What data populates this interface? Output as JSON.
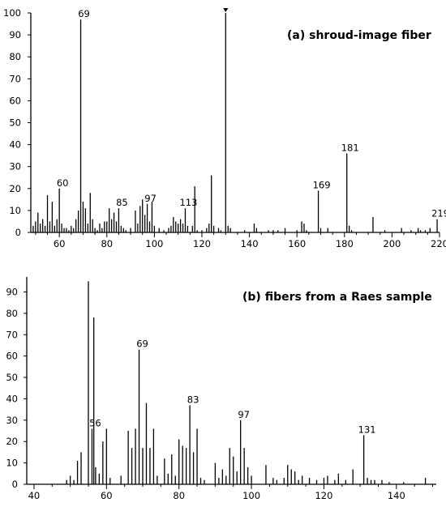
{
  "chart_data": [
    {
      "type": "bar",
      "title": "(a) shroud-image fiber",
      "xlabel": "",
      "ylabel": "",
      "xlim": [
        48,
        220
      ],
      "ylim": [
        0,
        100
      ],
      "xticks": [
        60,
        80,
        100,
        120,
        140,
        160,
        180,
        200,
        220
      ],
      "yticks": [
        0,
        10,
        20,
        30,
        40,
        50,
        60,
        70,
        80,
        90,
        100
      ],
      "peak_labels": [
        {
          "x": 69,
          "text": "69"
        },
        {
          "x": 60,
          "text": "60"
        },
        {
          "x": 85,
          "text": "85"
        },
        {
          "x": 97,
          "text": "97"
        },
        {
          "x": 113,
          "text": "113"
        },
        {
          "x": 169,
          "text": "169"
        },
        {
          "x": 181,
          "text": "181"
        },
        {
          "x": 219,
          "text": "219"
        }
      ],
      "peaks": [
        {
          "x": 49,
          "y": 3
        },
        {
          "x": 50,
          "y": 5
        },
        {
          "x": 51,
          "y": 9
        },
        {
          "x": 52,
          "y": 4
        },
        {
          "x": 53,
          "y": 6
        },
        {
          "x": 54,
          "y": 3
        },
        {
          "x": 55,
          "y": 17
        },
        {
          "x": 56,
          "y": 5
        },
        {
          "x": 57,
          "y": 14
        },
        {
          "x": 58,
          "y": 3
        },
        {
          "x": 59,
          "y": 6
        },
        {
          "x": 60,
          "y": 20
        },
        {
          "x": 61,
          "y": 4
        },
        {
          "x": 62,
          "y": 2
        },
        {
          "x": 63,
          "y": 2
        },
        {
          "x": 64,
          "y": 1
        },
        {
          "x": 65,
          "y": 3
        },
        {
          "x": 66,
          "y": 2
        },
        {
          "x": 67,
          "y": 6
        },
        {
          "x": 68,
          "y": 10
        },
        {
          "x": 69,
          "y": 97
        },
        {
          "x": 70,
          "y": 14
        },
        {
          "x": 71,
          "y": 11
        },
        {
          "x": 72,
          "y": 4
        },
        {
          "x": 73,
          "y": 18
        },
        {
          "x": 74,
          "y": 6
        },
        {
          "x": 75,
          "y": 2
        },
        {
          "x": 76,
          "y": 1
        },
        {
          "x": 77,
          "y": 4
        },
        {
          "x": 78,
          "y": 2
        },
        {
          "x": 79,
          "y": 5
        },
        {
          "x": 80,
          "y": 5
        },
        {
          "x": 81,
          "y": 11
        },
        {
          "x": 82,
          "y": 6
        },
        {
          "x": 83,
          "y": 9
        },
        {
          "x": 84,
          "y": 5
        },
        {
          "x": 85,
          "y": 11
        },
        {
          "x": 86,
          "y": 3
        },
        {
          "x": 87,
          "y": 2
        },
        {
          "x": 88,
          "y": 1
        },
        {
          "x": 90,
          "y": 2
        },
        {
          "x": 92,
          "y": 10
        },
        {
          "x": 93,
          "y": 4
        },
        {
          "x": 94,
          "y": 12
        },
        {
          "x": 95,
          "y": 15
        },
        {
          "x": 96,
          "y": 8
        },
        {
          "x": 97,
          "y": 13
        },
        {
          "x": 98,
          "y": 5
        },
        {
          "x": 99,
          "y": 14
        },
        {
          "x": 100,
          "y": 3
        },
        {
          "x": 102,
          "y": 2
        },
        {
          "x": 104,
          "y": 1
        },
        {
          "x": 106,
          "y": 2
        },
        {
          "x": 107,
          "y": 3
        },
        {
          "x": 108,
          "y": 7
        },
        {
          "x": 109,
          "y": 5
        },
        {
          "x": 110,
          "y": 4
        },
        {
          "x": 111,
          "y": 6
        },
        {
          "x": 112,
          "y": 4
        },
        {
          "x": 113,
          "y": 11
        },
        {
          "x": 114,
          "y": 3
        },
        {
          "x": 116,
          "y": 3
        },
        {
          "x": 117,
          "y": 21
        },
        {
          "x": 118,
          "y": 1
        },
        {
          "x": 120,
          "y": 1
        },
        {
          "x": 122,
          "y": 2
        },
        {
          "x": 123,
          "y": 4
        },
        {
          "x": 124,
          "y": 26
        },
        {
          "x": 125,
          "y": 3
        },
        {
          "x": 127,
          "y": 2
        },
        {
          "x": 128,
          "y": 1
        },
        {
          "x": 130,
          "y": 100
        },
        {
          "x": 131,
          "y": 3
        },
        {
          "x": 132,
          "y": 2
        },
        {
          "x": 138,
          "y": 1
        },
        {
          "x": 142,
          "y": 4
        },
        {
          "x": 143,
          "y": 2
        },
        {
          "x": 148,
          "y": 1
        },
        {
          "x": 150,
          "y": 1
        },
        {
          "x": 152,
          "y": 1
        },
        {
          "x": 155,
          "y": 2
        },
        {
          "x": 160,
          "y": 1
        },
        {
          "x": 162,
          "y": 5
        },
        {
          "x": 163,
          "y": 4
        },
        {
          "x": 164,
          "y": 1
        },
        {
          "x": 169,
          "y": 19
        },
        {
          "x": 170,
          "y": 2
        },
        {
          "x": 173,
          "y": 2
        },
        {
          "x": 181,
          "y": 36
        },
        {
          "x": 182,
          "y": 3
        },
        {
          "x": 183,
          "y": 1
        },
        {
          "x": 192,
          "y": 7
        },
        {
          "x": 197,
          "y": 1
        },
        {
          "x": 204,
          "y": 2
        },
        {
          "x": 208,
          "y": 1
        },
        {
          "x": 211,
          "y": 2
        },
        {
          "x": 212,
          "y": 1
        },
        {
          "x": 214,
          "y": 1
        },
        {
          "x": 216,
          "y": 2
        },
        {
          "x": 219,
          "y": 6
        }
      ]
    },
    {
      "type": "bar",
      "title": "(b) fibers from a Raes sample",
      "xlabel": "",
      "ylabel": "",
      "xlim": [
        38,
        151
      ],
      "ylim": [
        0,
        97
      ],
      "xticks": [
        40,
        60,
        80,
        100,
        120,
        140
      ],
      "yticks": [
        0,
        10,
        20,
        30,
        40,
        50,
        60,
        70,
        80,
        90
      ],
      "peak_labels": [
        {
          "x": 56,
          "text": "56"
        },
        {
          "x": 69,
          "text": "69"
        },
        {
          "x": 83,
          "text": "83"
        },
        {
          "x": 97,
          "text": "97"
        },
        {
          "x": 131,
          "text": "131"
        }
      ],
      "peaks": [
        {
          "x": 49,
          "y": 2
        },
        {
          "x": 50,
          "y": 4
        },
        {
          "x": 51,
          "y": 2
        },
        {
          "x": 52,
          "y": 11
        },
        {
          "x": 53,
          "y": 15
        },
        {
          "x": 55,
          "y": 95
        },
        {
          "x": 56,
          "y": 26
        },
        {
          "x": 56.5,
          "y": 78
        },
        {
          "x": 57,
          "y": 8
        },
        {
          "x": 58,
          "y": 5
        },
        {
          "x": 59,
          "y": 20
        },
        {
          "x": 60,
          "y": 26
        },
        {
          "x": 61,
          "y": 3
        },
        {
          "x": 64,
          "y": 4
        },
        {
          "x": 66,
          "y": 25
        },
        {
          "x": 67,
          "y": 17
        },
        {
          "x": 68,
          "y": 26
        },
        {
          "x": 69,
          "y": 63
        },
        {
          "x": 70,
          "y": 17
        },
        {
          "x": 71,
          "y": 38
        },
        {
          "x": 72,
          "y": 17
        },
        {
          "x": 73,
          "y": 26
        },
        {
          "x": 74,
          "y": 4
        },
        {
          "x": 76,
          "y": 12
        },
        {
          "x": 77,
          "y": 5
        },
        {
          "x": 78,
          "y": 14
        },
        {
          "x": 79,
          "y": 4
        },
        {
          "x": 80,
          "y": 21
        },
        {
          "x": 81,
          "y": 18
        },
        {
          "x": 82,
          "y": 17
        },
        {
          "x": 83,
          "y": 37
        },
        {
          "x": 84,
          "y": 15
        },
        {
          "x": 85,
          "y": 26
        },
        {
          "x": 86,
          "y": 3
        },
        {
          "x": 87,
          "y": 2
        },
        {
          "x": 90,
          "y": 10
        },
        {
          "x": 91,
          "y": 3
        },
        {
          "x": 92,
          "y": 7
        },
        {
          "x": 93,
          "y": 4
        },
        {
          "x": 94,
          "y": 17
        },
        {
          "x": 95,
          "y": 13
        },
        {
          "x": 96,
          "y": 6
        },
        {
          "x": 97,
          "y": 30
        },
        {
          "x": 98,
          "y": 17
        },
        {
          "x": 99,
          "y": 8
        },
        {
          "x": 100,
          "y": 4
        },
        {
          "x": 104,
          "y": 9
        },
        {
          "x": 106,
          "y": 3
        },
        {
          "x": 107,
          "y": 2
        },
        {
          "x": 109,
          "y": 3
        },
        {
          "x": 110,
          "y": 9
        },
        {
          "x": 111,
          "y": 7
        },
        {
          "x": 112,
          "y": 6
        },
        {
          "x": 113,
          "y": 2
        },
        {
          "x": 114,
          "y": 4
        },
        {
          "x": 116,
          "y": 3
        },
        {
          "x": 118,
          "y": 2
        },
        {
          "x": 120,
          "y": 3
        },
        {
          "x": 121,
          "y": 4
        },
        {
          "x": 123,
          "y": 2
        },
        {
          "x": 124,
          "y": 5
        },
        {
          "x": 126,
          "y": 2
        },
        {
          "x": 128,
          "y": 7
        },
        {
          "x": 131,
          "y": 23
        },
        {
          "x": 132,
          "y": 3
        },
        {
          "x": 133,
          "y": 2
        },
        {
          "x": 134,
          "y": 2
        },
        {
          "x": 136,
          "y": 2
        },
        {
          "x": 138,
          "y": 1
        },
        {
          "x": 142,
          "y": 1
        },
        {
          "x": 148,
          "y": 3
        }
      ]
    }
  ]
}
